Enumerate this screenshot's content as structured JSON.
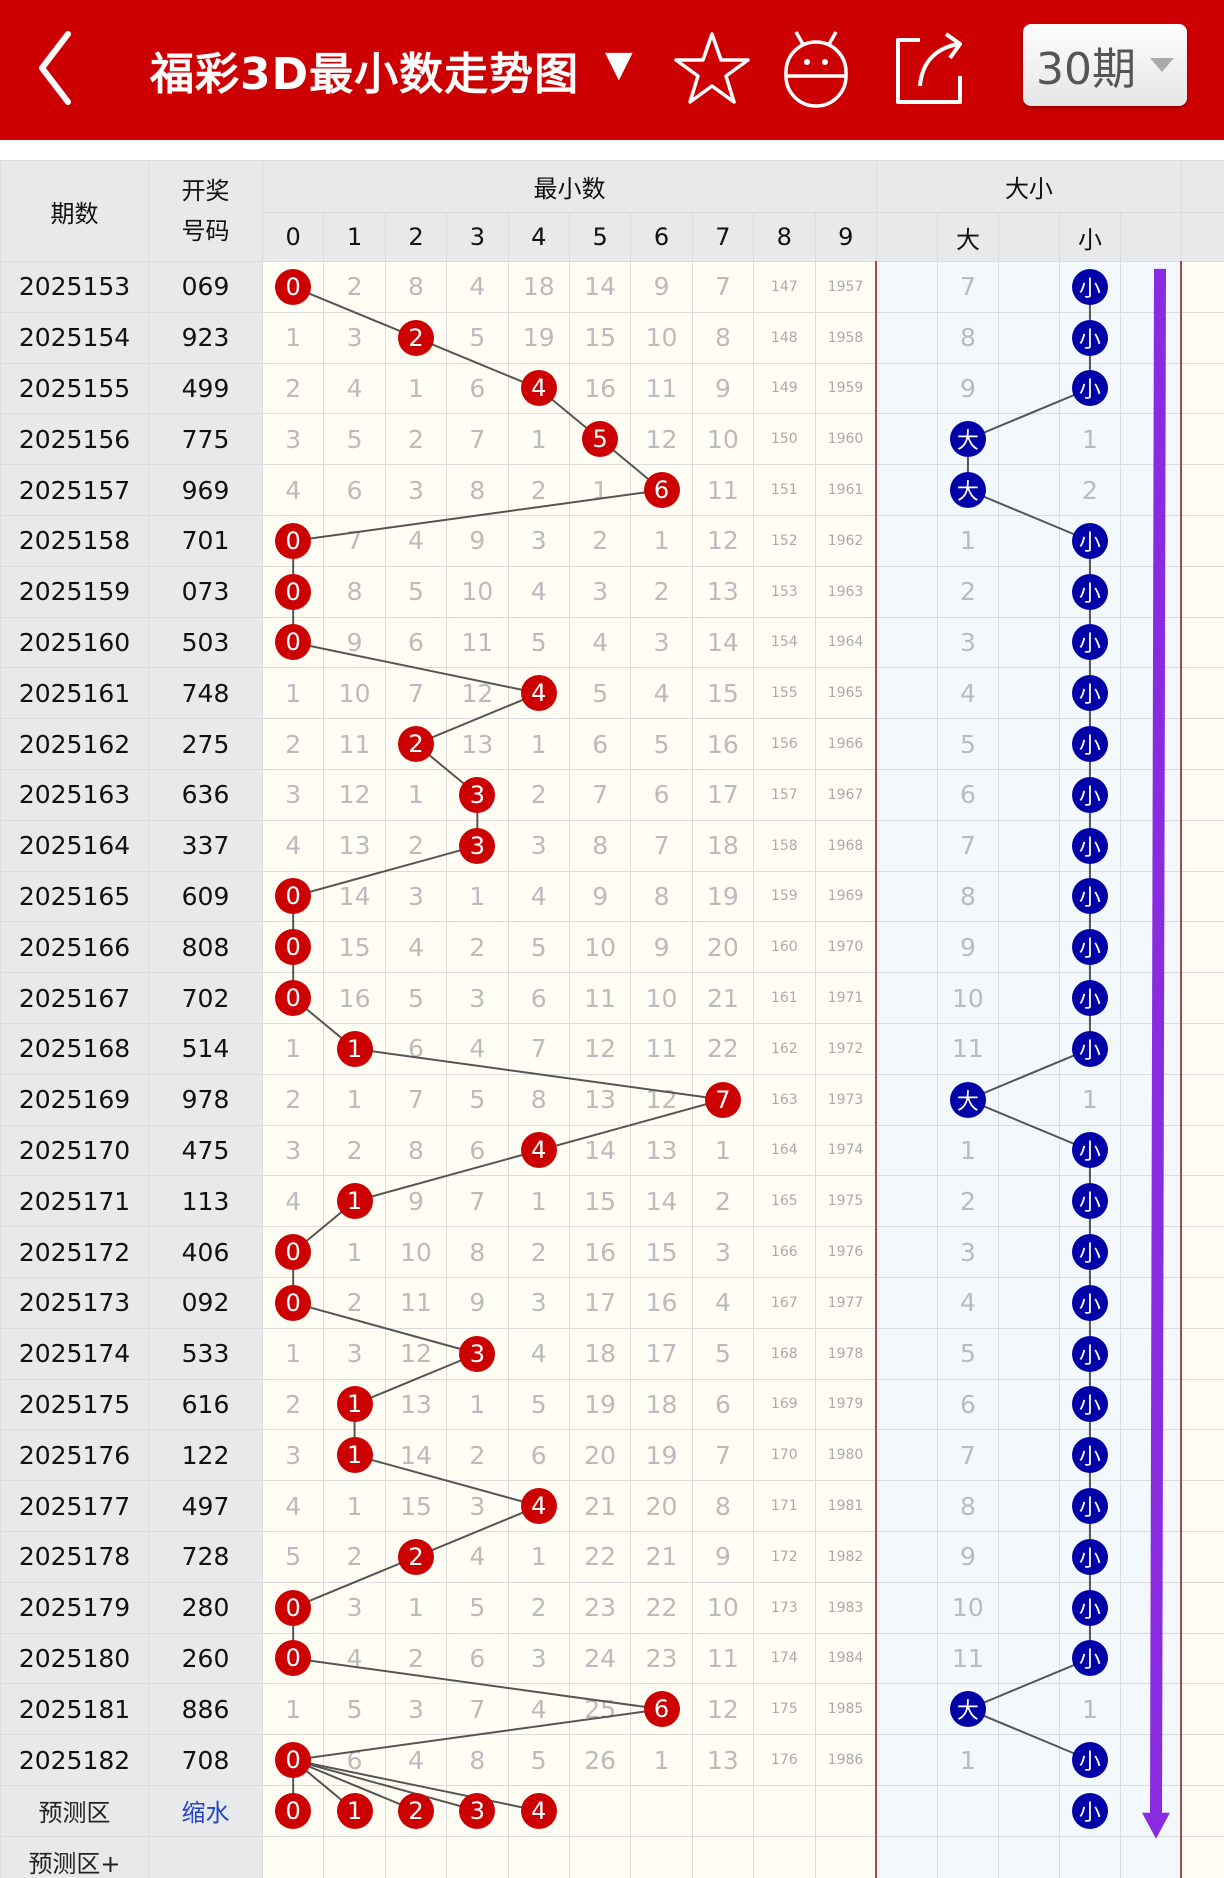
{
  "header": {
    "title": "福彩3D最小数走势图",
    "title_caret": "▼",
    "period_select": "30期",
    "icons": [
      "back-icon",
      "star-icon",
      "robot-icon",
      "share-icon"
    ]
  },
  "colors": {
    "brand": "#cc0000",
    "ball_red": "#cc0000",
    "ball_blue": "#0000a8",
    "arrow": "#8a2be2"
  },
  "table": {
    "head": {
      "period": "期数",
      "draw_line1": "开奖",
      "draw_line2": "号码",
      "min_group": "最小数",
      "bs_group": "大小",
      "digits": [
        "0",
        "1",
        "2",
        "3",
        "4",
        "5",
        "6",
        "7",
        "8",
        "9"
      ],
      "bs_cols": [
        "",
        "大",
        "",
        "小",
        ""
      ]
    },
    "rows": [
      {
        "period": "2025153",
        "draw": "069",
        "digits": [
          "0",
          "2",
          "8",
          "4",
          "18",
          "14",
          "9",
          "7",
          "147",
          "1957"
        ],
        "min": 0,
        "bs": "小",
        "big": "7",
        "small": "小"
      },
      {
        "period": "2025154",
        "draw": "923",
        "digits": [
          "1",
          "3",
          "2",
          "5",
          "19",
          "15",
          "10",
          "8",
          "148",
          "1958"
        ],
        "min": 2,
        "bs": "小",
        "big": "8",
        "small": "小"
      },
      {
        "period": "2025155",
        "draw": "499",
        "digits": [
          "2",
          "4",
          "1",
          "6",
          "4",
          "16",
          "11",
          "9",
          "149",
          "1959"
        ],
        "min": 4,
        "bs": "小",
        "big": "9",
        "small": "小"
      },
      {
        "period": "2025156",
        "draw": "775",
        "digits": [
          "3",
          "5",
          "2",
          "7",
          "1",
          "5",
          "12",
          "10",
          "150",
          "1960"
        ],
        "min": 5,
        "bs": "大",
        "big": "大",
        "small": "1"
      },
      {
        "period": "2025157",
        "draw": "969",
        "digits": [
          "4",
          "6",
          "3",
          "8",
          "2",
          "1",
          "6",
          "11",
          "151",
          "1961"
        ],
        "min": 6,
        "bs": "大",
        "big": "大",
        "small": "2"
      },
      {
        "period": "2025158",
        "draw": "701",
        "digits": [
          "0",
          "7",
          "4",
          "9",
          "3",
          "2",
          "1",
          "12",
          "152",
          "1962"
        ],
        "min": 0,
        "bs": "小",
        "big": "1",
        "small": "小"
      },
      {
        "period": "2025159",
        "draw": "073",
        "digits": [
          "0",
          "8",
          "5",
          "10",
          "4",
          "3",
          "2",
          "13",
          "153",
          "1963"
        ],
        "min": 0,
        "bs": "小",
        "big": "2",
        "small": "小"
      },
      {
        "period": "2025160",
        "draw": "503",
        "digits": [
          "0",
          "9",
          "6",
          "11",
          "5",
          "4",
          "3",
          "14",
          "154",
          "1964"
        ],
        "min": 0,
        "bs": "小",
        "big": "3",
        "small": "小"
      },
      {
        "period": "2025161",
        "draw": "748",
        "digits": [
          "1",
          "10",
          "7",
          "12",
          "4",
          "5",
          "4",
          "15",
          "155",
          "1965"
        ],
        "min": 4,
        "bs": "小",
        "big": "4",
        "small": "小"
      },
      {
        "period": "2025162",
        "draw": "275",
        "digits": [
          "2",
          "11",
          "2",
          "13",
          "1",
          "6",
          "5",
          "16",
          "156",
          "1966"
        ],
        "min": 2,
        "bs": "小",
        "big": "5",
        "small": "小"
      },
      {
        "period": "2025163",
        "draw": "636",
        "digits": [
          "3",
          "12",
          "1",
          "3",
          "2",
          "7",
          "6",
          "17",
          "157",
          "1967"
        ],
        "min": 3,
        "bs": "小",
        "big": "6",
        "small": "小"
      },
      {
        "period": "2025164",
        "draw": "337",
        "digits": [
          "4",
          "13",
          "2",
          "3",
          "3",
          "8",
          "7",
          "18",
          "158",
          "1968"
        ],
        "min": 3,
        "bs": "小",
        "big": "7",
        "small": "小"
      },
      {
        "period": "2025165",
        "draw": "609",
        "digits": [
          "0",
          "14",
          "3",
          "1",
          "4",
          "9",
          "8",
          "19",
          "159",
          "1969"
        ],
        "min": 0,
        "bs": "小",
        "big": "8",
        "small": "小"
      },
      {
        "period": "2025166",
        "draw": "808",
        "digits": [
          "0",
          "15",
          "4",
          "2",
          "5",
          "10",
          "9",
          "20",
          "160",
          "1970"
        ],
        "min": 0,
        "bs": "小",
        "big": "9",
        "small": "小"
      },
      {
        "period": "2025167",
        "draw": "702",
        "digits": [
          "0",
          "16",
          "5",
          "3",
          "6",
          "11",
          "10",
          "21",
          "161",
          "1971"
        ],
        "min": 0,
        "bs": "小",
        "big": "10",
        "small": "小"
      },
      {
        "period": "2025168",
        "draw": "514",
        "digits": [
          "1",
          "1",
          "6",
          "4",
          "7",
          "12",
          "11",
          "22",
          "162",
          "1972"
        ],
        "min": 1,
        "bs": "小",
        "big": "11",
        "small": "小"
      },
      {
        "period": "2025169",
        "draw": "978",
        "digits": [
          "2",
          "1",
          "7",
          "5",
          "8",
          "13",
          "12",
          "7",
          "163",
          "1973"
        ],
        "min": 7,
        "bs": "大",
        "big": "大",
        "small": "1"
      },
      {
        "period": "2025170",
        "draw": "475",
        "digits": [
          "3",
          "2",
          "8",
          "6",
          "4",
          "14",
          "13",
          "1",
          "164",
          "1974"
        ],
        "min": 4,
        "bs": "小",
        "big": "1",
        "small": "小"
      },
      {
        "period": "2025171",
        "draw": "113",
        "digits": [
          "4",
          "1",
          "9",
          "7",
          "1",
          "15",
          "14",
          "2",
          "165",
          "1975"
        ],
        "min": 1,
        "bs": "小",
        "big": "2",
        "small": "小"
      },
      {
        "period": "2025172",
        "draw": "406",
        "digits": [
          "0",
          "1",
          "10",
          "8",
          "2",
          "16",
          "15",
          "3",
          "166",
          "1976"
        ],
        "min": 0,
        "bs": "小",
        "big": "3",
        "small": "小"
      },
      {
        "period": "2025173",
        "draw": "092",
        "digits": [
          "0",
          "2",
          "11",
          "9",
          "3",
          "17",
          "16",
          "4",
          "167",
          "1977"
        ],
        "min": 0,
        "bs": "小",
        "big": "4",
        "small": "小"
      },
      {
        "period": "2025174",
        "draw": "533",
        "digits": [
          "1",
          "3",
          "12",
          "3",
          "4",
          "18",
          "17",
          "5",
          "168",
          "1978"
        ],
        "min": 3,
        "bs": "小",
        "big": "5",
        "small": "小"
      },
      {
        "period": "2025175",
        "draw": "616",
        "digits": [
          "2",
          "1",
          "13",
          "1",
          "5",
          "19",
          "18",
          "6",
          "169",
          "1979"
        ],
        "min": 1,
        "bs": "小",
        "big": "6",
        "small": "小"
      },
      {
        "period": "2025176",
        "draw": "122",
        "digits": [
          "3",
          "1",
          "14",
          "2",
          "6",
          "20",
          "19",
          "7",
          "170",
          "1980"
        ],
        "min": 1,
        "bs": "小",
        "big": "7",
        "small": "小"
      },
      {
        "period": "2025177",
        "draw": "497",
        "digits": [
          "4",
          "1",
          "15",
          "3",
          "4",
          "21",
          "20",
          "8",
          "171",
          "1981"
        ],
        "min": 4,
        "bs": "小",
        "big": "8",
        "small": "小"
      },
      {
        "period": "2025178",
        "draw": "728",
        "digits": [
          "5",
          "2",
          "2",
          "4",
          "1",
          "22",
          "21",
          "9",
          "172",
          "1982"
        ],
        "min": 2,
        "bs": "小",
        "big": "9",
        "small": "小"
      },
      {
        "period": "2025179",
        "draw": "280",
        "digits": [
          "0",
          "3",
          "1",
          "5",
          "2",
          "23",
          "22",
          "10",
          "173",
          "1983"
        ],
        "min": 0,
        "bs": "小",
        "big": "10",
        "small": "小"
      },
      {
        "period": "2025180",
        "draw": "260",
        "digits": [
          "0",
          "4",
          "2",
          "6",
          "3",
          "24",
          "23",
          "11",
          "174",
          "1984"
        ],
        "min": 0,
        "bs": "小",
        "big": "11",
        "small": "小"
      },
      {
        "period": "2025181",
        "draw": "886",
        "digits": [
          "1",
          "5",
          "3",
          "7",
          "4",
          "25",
          "6",
          "12",
          "175",
          "1985"
        ],
        "min": 6,
        "bs": "大",
        "big": "大",
        "small": "1"
      },
      {
        "period": "2025182",
        "draw": "708",
        "digits": [
          "0",
          "6",
          "4",
          "8",
          "5",
          "26",
          "1",
          "13",
          "176",
          "1986"
        ],
        "min": 0,
        "bs": "小",
        "big": "1",
        "small": "小"
      }
    ],
    "prediction": {
      "label": "预测区",
      "link": "缩水",
      "balls": [
        "0",
        "1",
        "2",
        "3",
        "4"
      ],
      "bs": "小"
    },
    "prediction_plus": {
      "label": "预测区+"
    }
  }
}
